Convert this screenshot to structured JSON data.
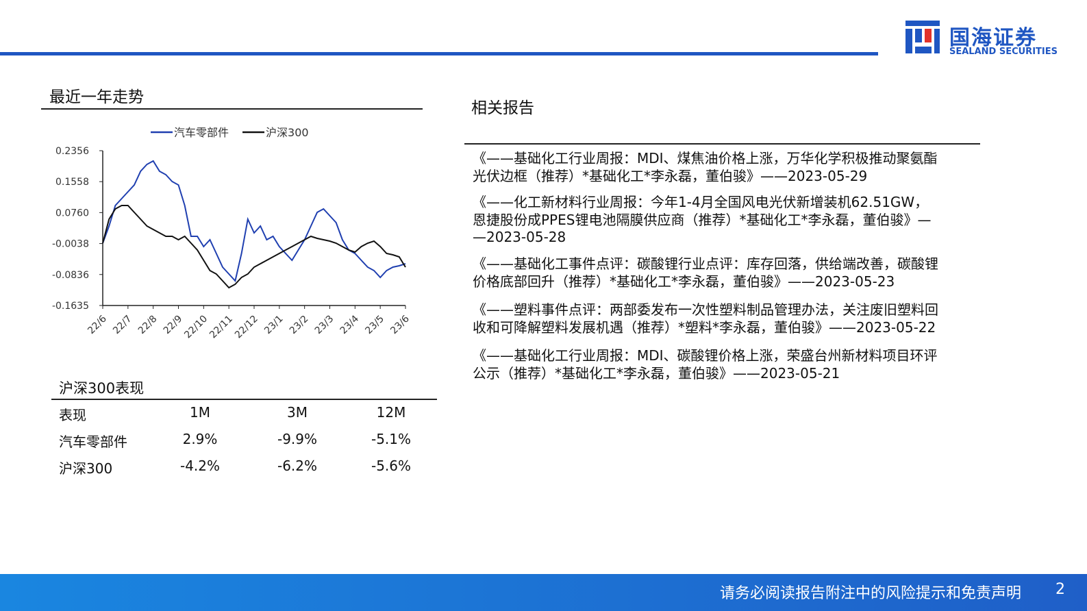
{
  "header": {
    "logo_name": "国海证券",
    "logo_english": "SEALAND SECURITIES"
  },
  "chart_section": {
    "title": "最近一年走势"
  },
  "chart_data": {
    "type": "line",
    "categories": [
      "22/6",
      null,
      null,
      null,
      "22/7",
      null,
      null,
      null,
      "22/8",
      null,
      null,
      null,
      "22/9",
      null,
      null,
      null,
      "22/10",
      null,
      null,
      null,
      "22/11",
      null,
      null,
      null,
      "22/12",
      null,
      null,
      null,
      "23/1",
      null,
      null,
      null,
      "23/2",
      null,
      null,
      null,
      "23/3",
      null,
      null,
      null,
      "23/4",
      null,
      null,
      null,
      "23/5",
      null,
      null,
      null,
      "23/6"
    ],
    "series": [
      {
        "name": "汽车零部件",
        "color": "#1f3fb0",
        "values": [
          -0.0028,
          0.0413,
          0.0943,
          0.112,
          0.1296,
          0.1473,
          0.1826,
          0.2003,
          0.2091,
          0.1826,
          0.1738,
          0.1561,
          0.1473,
          0.0943,
          0.0148,
          0.0148,
          -0.0116,
          0.006,
          -0.0293,
          -0.0646,
          -0.0823,
          -0.0999,
          -0.0293,
          0.059,
          0.0237,
          0.0413,
          0.006,
          0.0148,
          -0.0116,
          -0.0293,
          -0.047,
          -0.0205,
          0.006,
          0.0413,
          0.0767,
          0.0855,
          0.0678,
          0.0502,
          0.006,
          -0.0205,
          -0.0293,
          -0.047,
          -0.0646,
          -0.0735,
          -0.0911,
          -0.0735,
          -0.0646,
          -0.0611,
          -0.0558
        ]
      },
      {
        "name": "沪深300",
        "color": "#111111",
        "values": [
          -0.0028,
          0.059,
          0.0855,
          0.0943,
          0.0943,
          0.0767,
          0.059,
          0.0413,
          0.0325,
          0.0237,
          0.0148,
          0.0148,
          0.006,
          0.0148,
          -0.0028,
          -0.0205,
          -0.047,
          -0.0735,
          -0.0823,
          -0.0999,
          -0.1176,
          -0.1088,
          -0.0911,
          -0.0823,
          -0.0646,
          -0.0558,
          -0.047,
          -0.0381,
          -0.0293,
          -0.0205,
          -0.0116,
          -0.0028,
          0.006,
          0.0148,
          0.0096,
          0.006,
          0.0025,
          -0.0028,
          -0.0116,
          -0.0205,
          -0.0258,
          -0.0116,
          -0.0028,
          0.0025,
          -0.0116,
          -0.0293,
          -0.0328,
          -0.0381,
          -0.0646
        ]
      }
    ],
    "ylim": [
      -0.1635,
      0.2356
    ],
    "yticks": [
      0.2356,
      0.1558,
      {
        "value": 0.076,
        "label": "0.0760"
      },
      -0.0038,
      -0.0836,
      -0.1635
    ],
    "legend": "top"
  },
  "table": {
    "title": "沪深300表现",
    "header": [
      "表现",
      "1M",
      "3M",
      "12M"
    ],
    "rows": [
      [
        "汽车零部件",
        "2.9%",
        "-9.9%",
        "-5.1%"
      ],
      [
        "沪深300",
        "-4.2%",
        "-6.2%",
        "-5.6%"
      ]
    ]
  },
  "reports": {
    "title": "相关报告",
    "items": [
      [
        "《——基础化工行业周报：MDI、煤焦油价格上涨，万华化学积极推动聚氨酯",
        "光伏边框（推荐）*基础化工*李永磊，董伯骏》——2023-05-29"
      ],
      [
        "《——化工新材料行业周报：今年1-4月全国风电光伏新增装机62.51GW，",
        "恩捷股份成PPES锂电池隔膜供应商（推荐）*基础化工*李永磊，董伯骏》—",
        "—2023-05-28"
      ],
      [
        "《——基础化工事件点评：碳酸锂行业点评：库存回落，供给端改善，碳酸锂",
        "价格底部回升（推荐）*基础化工*李永磊，董伯骏》——2023-05-23"
      ],
      [
        "《——塑料事件点评：两部委发布一次性塑料制品管理办法，关注废旧塑料回",
        "收和可降解塑料发展机遇（推荐）*塑料*李永磊，董伯骏》——2023-05-22"
      ],
      [
        "《——基础化工行业周报：MDI、碳酸锂价格上涨，荣盛台州新材料项目环评",
        "公示（推荐）*基础化工*李永磊，董伯骏》——2023-05-21"
      ]
    ]
  },
  "footer": {
    "disclaimer": "请务必阅读报告附注中的风险提示和免责声明",
    "page": "2"
  }
}
